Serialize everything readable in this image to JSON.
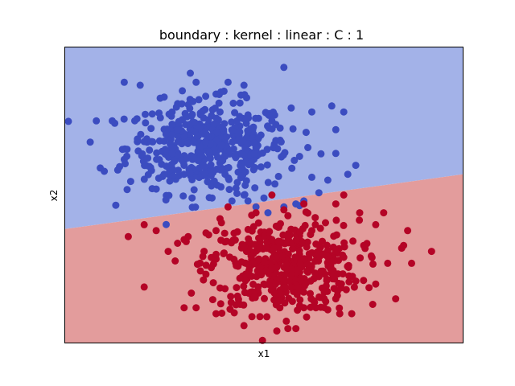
{
  "chart_data": {
    "type": "scatter",
    "title": "boundary : kernel : linear : C : 1",
    "xlabel": "x1",
    "ylabel": "x2",
    "xlim": [
      0,
      100
    ],
    "ylim": [
      0,
      100
    ],
    "x_ticks_shown": false,
    "y_ticks_shown": false,
    "grid": false,
    "legend": "none",
    "decision_boundary": {
      "x": [
        0,
        100
      ],
      "y": [
        38.5,
        57.0
      ],
      "region_above_color": "#a3b2e8",
      "region_below_color": "#e39c9c"
    },
    "series": [
      {
        "color": "#3b4cc0",
        "cluster_center": [
          36,
          66
        ],
        "spread": [
          12,
          9
        ],
        "n_points": 500,
        "points": [
          [
            15,
            88
          ],
          [
            19,
            87
          ],
          [
            33,
            88
          ],
          [
            40,
            85
          ],
          [
            45,
            87
          ],
          [
            55,
            93
          ],
          [
            12,
            75
          ],
          [
            8,
            75
          ],
          [
            10,
            58
          ],
          [
            23,
            52
          ],
          [
            32,
            49
          ],
          [
            37,
            49
          ],
          [
            45,
            50
          ],
          [
            50,
            49
          ],
          [
            27,
            64
          ],
          [
            20,
            68
          ],
          [
            25,
            57
          ],
          [
            46,
            77
          ],
          [
            57,
            59
          ],
          [
            60,
            48
          ],
          [
            62,
            78
          ],
          [
            67,
            80
          ],
          [
            70,
            78
          ],
          [
            68,
            72
          ],
          [
            61,
            66
          ],
          [
            68,
            64
          ],
          [
            73,
            60
          ],
          [
            71,
            57
          ],
          [
            62,
            56
          ],
          [
            66,
            55
          ],
          [
            58,
            47
          ],
          [
            55,
            46
          ],
          [
            48,
            46
          ],
          [
            46,
            48
          ],
          [
            51,
            44
          ],
          [
            42,
            48
          ],
          [
            30,
            60
          ],
          [
            27,
            78
          ],
          [
            25,
            83
          ],
          [
            52,
            75
          ],
          [
            48,
            66
          ],
          [
            38,
            84
          ],
          [
            39,
            78
          ],
          [
            44,
            81
          ],
          [
            41,
            88
          ]
        ]
      },
      {
        "color": "#b40426",
        "cluster_center": [
          55,
          26
        ],
        "spread": [
          11,
          9
        ],
        "n_points": 500,
        "points": [
          [
            20,
            19
          ],
          [
            30,
            12
          ],
          [
            33,
            12
          ],
          [
            38,
            10
          ],
          [
            43,
            13
          ],
          [
            45,
            6
          ],
          [
            47,
            9
          ],
          [
            49,
            9
          ],
          [
            54,
            12
          ],
          [
            56,
            5
          ],
          [
            58,
            5
          ],
          [
            60,
            12
          ],
          [
            68,
            15
          ],
          [
            69,
            10
          ],
          [
            72,
            10
          ],
          [
            78,
            20
          ],
          [
            83,
            15
          ],
          [
            85,
            33
          ],
          [
            81,
            27
          ],
          [
            87,
            27
          ],
          [
            92,
            31
          ],
          [
            86,
            38
          ],
          [
            78,
            40
          ],
          [
            74,
            44
          ],
          [
            70,
            50
          ],
          [
            80,
            44
          ],
          [
            68,
            47
          ],
          [
            60,
            47
          ],
          [
            55,
            45
          ],
          [
            52,
            50
          ],
          [
            48,
            44
          ],
          [
            39,
            42
          ],
          [
            41,
            46
          ],
          [
            38,
            38
          ],
          [
            30,
            35
          ],
          [
            26,
            31
          ],
          [
            31,
            36
          ],
          [
            20,
            40
          ],
          [
            16,
            36
          ],
          [
            23,
            38
          ],
          [
            35,
            31
          ],
          [
            38,
            30
          ],
          [
            56,
            43
          ],
          [
            62,
            38
          ],
          [
            52,
            35
          ],
          [
            65,
            30
          ],
          [
            70,
            29
          ],
          [
            75,
            33
          ],
          [
            57,
            25
          ],
          [
            61,
            24
          ],
          [
            49,
            24
          ],
          [
            50,
            20
          ]
        ]
      }
    ]
  }
}
